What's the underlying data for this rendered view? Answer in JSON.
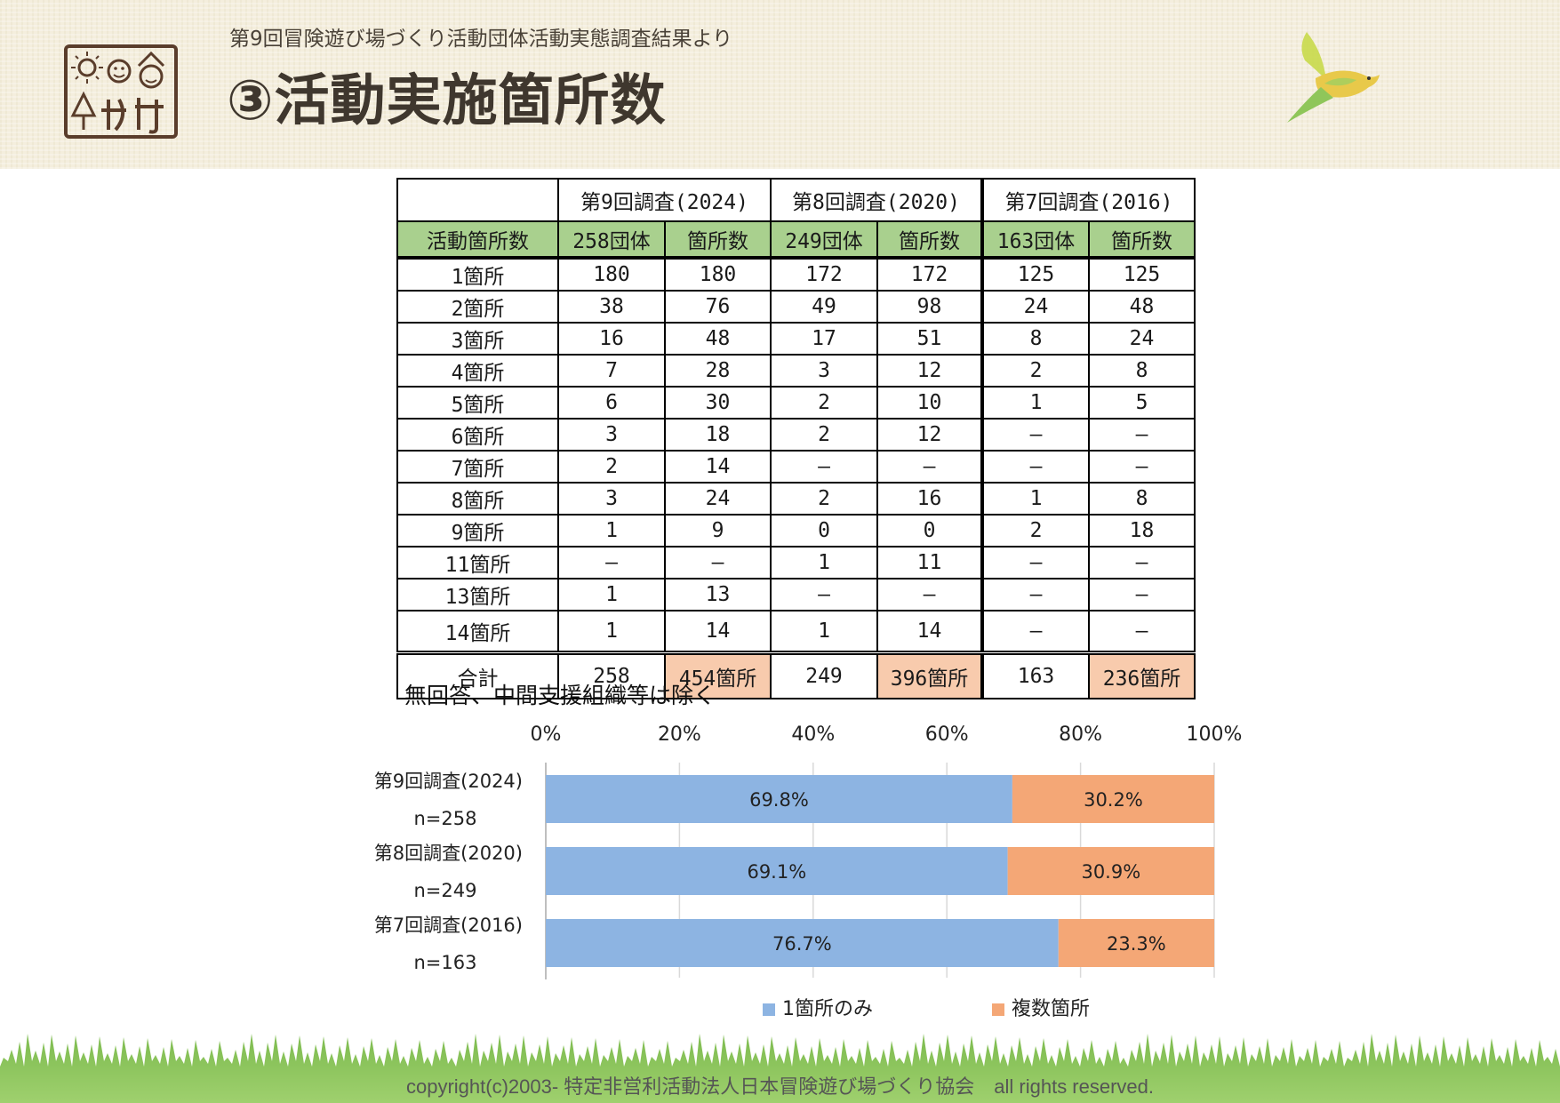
{
  "header": {
    "subtitle": "第9回冒険遊び場づくり活動団体活動実態調査結果より",
    "title": "③活動実施箇所数",
    "logo_icon": "playpark-logo-icon",
    "bird_icon": "bird-icon"
  },
  "table": {
    "surveys": [
      "第9回調査(2024)",
      "第8回調査(2020)",
      "第7回調査(2016)"
    ],
    "header_row": [
      "活動箇所数",
      "258団体",
      "箇所数",
      "249団体",
      "箇所数",
      "163団体",
      "箇所数"
    ],
    "rows": [
      [
        "1箇所",
        "180",
        "180",
        "172",
        "172",
        "125",
        "125"
      ],
      [
        "2箇所",
        "38",
        "76",
        "49",
        "98",
        "24",
        "48"
      ],
      [
        "3箇所",
        "16",
        "48",
        "17",
        "51",
        "8",
        "24"
      ],
      [
        "4箇所",
        "7",
        "28",
        "3",
        "12",
        "2",
        "8"
      ],
      [
        "5箇所",
        "6",
        "30",
        "2",
        "10",
        "1",
        "5"
      ],
      [
        "6箇所",
        "3",
        "18",
        "2",
        "12",
        "―",
        "―"
      ],
      [
        "7箇所",
        "2",
        "14",
        "―",
        "―",
        "―",
        "―"
      ],
      [
        "8箇所",
        "3",
        "24",
        "2",
        "16",
        "1",
        "8"
      ],
      [
        "9箇所",
        "1",
        "9",
        "0",
        "0",
        "2",
        "18"
      ],
      [
        "11箇所",
        "―",
        "―",
        "1",
        "11",
        "―",
        "―"
      ],
      [
        "13箇所",
        "1",
        "13",
        "―",
        "―",
        "―",
        "―"
      ],
      [
        "14箇所",
        "1",
        "14",
        "1",
        "14",
        "―",
        "―"
      ]
    ],
    "total_row": [
      "合計",
      "258",
      "454箇所",
      "249",
      "396箇所",
      "163",
      "236箇所"
    ],
    "highlight_color": "#f8cbad",
    "header_color": "#a9d08e"
  },
  "note": "無回答、中間支援組織等は除く",
  "chart_data": {
    "type": "bar",
    "orientation": "horizontal",
    "stacked": "percent",
    "categories": [
      "第9回調査(2024)",
      "第8回調査(2020)",
      "第7回調査(2016)"
    ],
    "category_sublabels": [
      "n=258",
      "n=249",
      "n=163"
    ],
    "x_ticks": [
      "0%",
      "20%",
      "40%",
      "60%",
      "80%",
      "100%"
    ],
    "xlim": [
      0,
      100
    ],
    "grid": true,
    "legend_position": "bottom",
    "series": [
      {
        "name": "1箇所のみ",
        "values": [
          69.8,
          69.1,
          76.7
        ],
        "labels": [
          "69.8%",
          "69.1%",
          "76.7%"
        ],
        "color": "#8db4e2"
      },
      {
        "name": "複数箇所",
        "values": [
          30.2,
          30.9,
          23.3
        ],
        "labels": [
          "30.2%",
          "30.9%",
          "23.3%"
        ],
        "color": "#f4a776"
      }
    ]
  },
  "footer": {
    "copyright": "copyright(c)2003- 特定非営利活動法人日本冒険遊び場づくり協会　all rights reserved.",
    "grass_icon": "grass-decoration"
  }
}
